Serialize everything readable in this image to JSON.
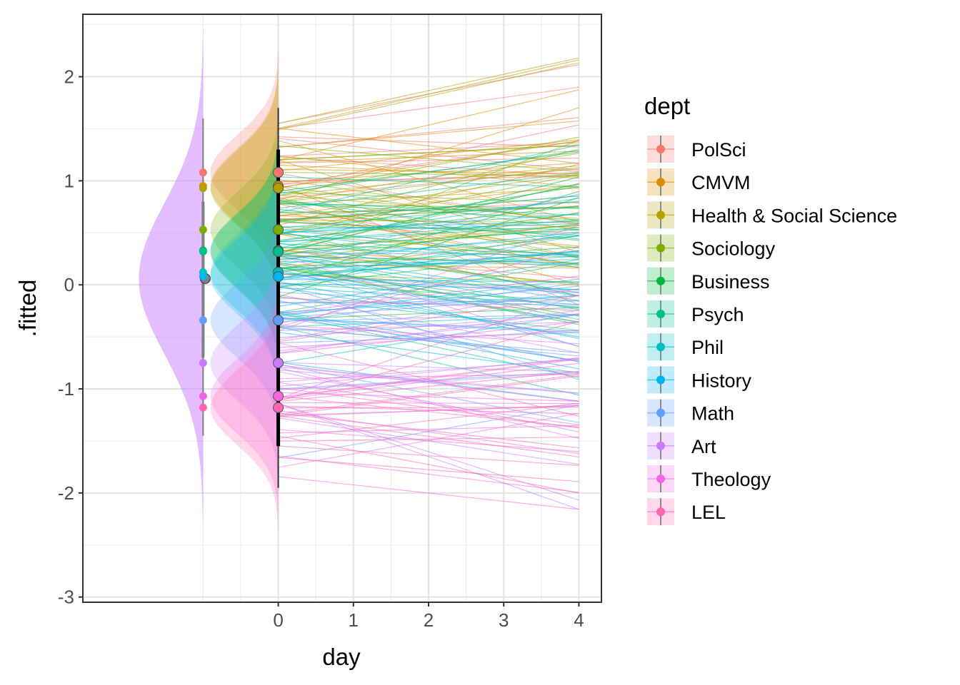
{
  "chart_data": {
    "type": "line",
    "xlabel": "day",
    "ylabel": ".fitted",
    "xlim": [
      -2.6,
      4.3
    ],
    "ylim": [
      -3.05,
      2.6
    ],
    "x_ticks": [
      0,
      1,
      2,
      3,
      4
    ],
    "y_ticks": [
      -3,
      -2,
      -1,
      0,
      1,
      2
    ],
    "grid": true,
    "legend": {
      "title": "dept",
      "placement": "right",
      "entries": [
        {
          "name": "PolSci",
          "color": "#F8766D"
        },
        {
          "name": "CMVM",
          "color": "#DE8C00"
        },
        {
          "name": "Health & Social Science",
          "color": "#B79F00"
        },
        {
          "name": "Sociology",
          "color": "#7CAE00"
        },
        {
          "name": "Business",
          "color": "#00BA38"
        },
        {
          "name": "Psych",
          "color": "#00C08B"
        },
        {
          "name": "Phil",
          "color": "#00BFC4"
        },
        {
          "name": "History",
          "color": "#00B4F0"
        },
        {
          "name": "Math",
          "color": "#619CFF"
        },
        {
          "name": "Art",
          "color": "#C77CFF"
        },
        {
          "name": "Theology",
          "color": "#F564E3"
        },
        {
          "name": "LEL",
          "color": "#FF64B0"
        }
      ]
    },
    "dept_means": [
      1.08,
      0.95,
      0.93,
      0.53,
      0.33,
      0.32,
      0.12,
      0.08,
      -0.34,
      -0.75,
      -1.07,
      -1.18
    ],
    "grand_mean": 0.06,
    "overall_interval": {
      "x": -1.0,
      "inner": [
        -0.7,
        0.8
      ],
      "outer": [
        -1.45,
        1.6
      ]
    },
    "lines_per_dept": 20,
    "line_x": [
      0,
      4
    ],
    "intercept_sd": 0.38,
    "slope_sd": 0.11,
    "density_positions": {
      "overall_x": -1.0,
      "dept_x": 0.0
    }
  }
}
